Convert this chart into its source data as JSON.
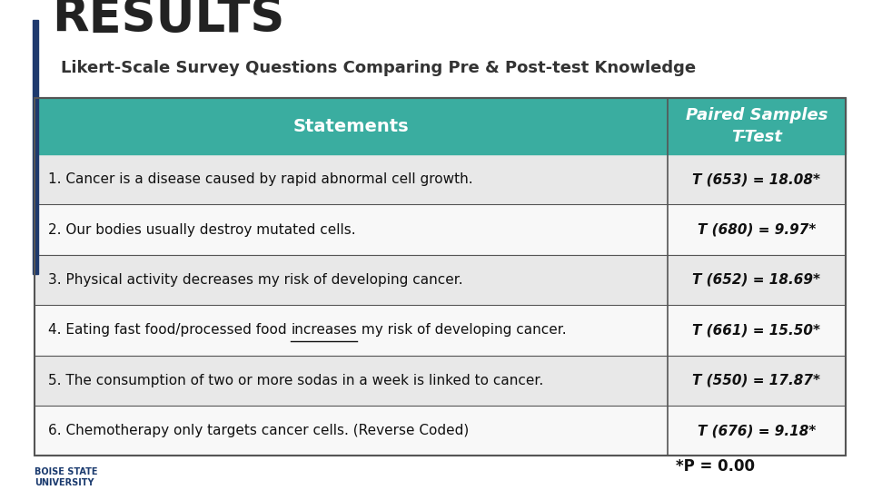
{
  "title": "RESULTS",
  "subtitle": "Likert-Scale Survey Questions Comparing Pre & Post-test Knowledge",
  "col1_header": "Statements",
  "col2_header": "Paired Samples\nT-Test",
  "rows": [
    [
      "1. Cancer is a disease caused by rapid abnormal cell growth.",
      "T (653) = 18.08*"
    ],
    [
      "2. Our bodies usually destroy mutated cells.",
      "T (680) = 9.97*"
    ],
    [
      "3. Physical activity decreases my risk of developing cancer.",
      "T (652) = 18.69*"
    ],
    [
      "4. Eating fast food/processed food increases my risk of developing cancer.",
      "T (661) = 15.50*"
    ],
    [
      "5. The consumption of two or more sodas in a week is linked to cancer.",
      "T (550) = 17.87*"
    ],
    [
      "6. Chemotherapy only targets cancer cells. (Reverse Coded)",
      "T (676) = 9.18*"
    ]
  ],
  "footer": "*P = 0.00",
  "header_bg": "#3aada0",
  "header_text_color": "#ffffff",
  "row_bg_odd": "#e8e8e8",
  "row_bg_even": "#f8f8f8",
  "title_color": "#222222",
  "subtitle_color": "#333333",
  "table_border_color": "#555555",
  "background_color": "#ffffff",
  "col_split": 0.78
}
